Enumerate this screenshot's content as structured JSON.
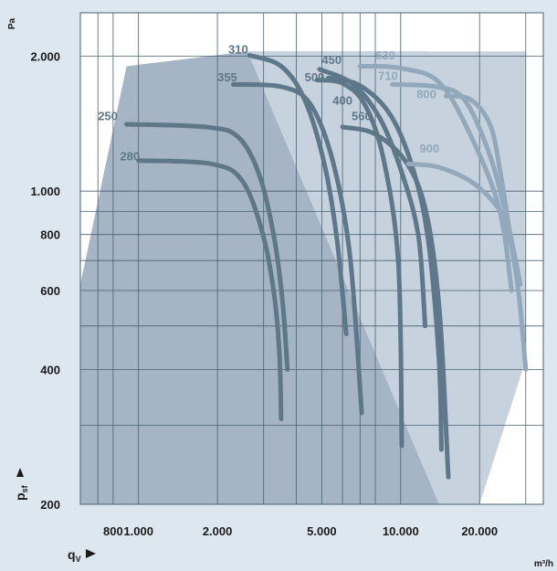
{
  "chart_data": {
    "type": "line",
    "x_scale": "log",
    "y_scale": "log",
    "ylabel": "Pa",
    "xlabel_unit": "m³/h",
    "xlabel_symbol": "q",
    "xlabel_sub": "V",
    "ylabel_symbol": "p",
    "ylabel_sub": "sf",
    "xlim": [
      600,
      35000
    ],
    "ylim": [
      200,
      2500
    ],
    "y_ticks": [
      {
        "value": 2000,
        "label": "2.000"
      },
      {
        "value": 1000,
        "label": "1.000"
      },
      {
        "value": 800,
        "label": "800"
      },
      {
        "value": 600,
        "label": "600"
      },
      {
        "value": 400,
        "label": "400"
      },
      {
        "value": 200,
        "label": "200"
      }
    ],
    "x_ticks": [
      {
        "value": 800,
        "label": "800"
      },
      {
        "value": 1000,
        "label": "1.000"
      },
      {
        "value": 2000,
        "label": "2.000"
      },
      {
        "value": 5000,
        "label": "5.000"
      },
      {
        "value": 10000,
        "label": "10.000"
      },
      {
        "value": 20000,
        "label": "20.000"
      }
    ],
    "x_grid": [
      700,
      800,
      1000,
      2000,
      3000,
      4000,
      5000,
      6000,
      7000,
      8000,
      10000,
      20000,
      30000
    ],
    "y_grid": [
      200,
      300,
      400,
      500,
      600,
      700,
      800,
      900,
      1000,
      2000
    ],
    "regions": [
      {
        "name": "dark",
        "color": "#a5b5c5",
        "points": [
          [
            600,
            620
          ],
          [
            900,
            1900
          ],
          [
            2600,
            2050
          ],
          [
            12500,
            2050
          ],
          [
            14000,
            200
          ],
          [
            600,
            200
          ]
        ]
      },
      {
        "name": "light",
        "color": "#c6d2dd",
        "points": [
          [
            2600,
            2050
          ],
          [
            30000,
            2050
          ],
          [
            30000,
            420
          ],
          [
            20000,
            200
          ],
          [
            14000,
            200
          ]
        ]
      }
    ],
    "series": [
      {
        "name": "250",
        "color": "#5e7789",
        "label_at": [
          700,
          1440
        ],
        "values": [
          [
            900,
            1410
          ],
          [
            1800,
            1390
          ],
          [
            2400,
            1320
          ],
          [
            2900,
            1080
          ],
          [
            3300,
            780
          ],
          [
            3550,
            560
          ],
          [
            3700,
            400
          ]
        ]
      },
      {
        "name": "280",
        "color": "#5e7789",
        "label_at": [
          850,
          1170
        ],
        "values": [
          [
            1000,
            1170
          ],
          [
            1900,
            1150
          ],
          [
            2500,
            1050
          ],
          [
            3000,
            790
          ],
          [
            3300,
            580
          ],
          [
            3450,
            430
          ],
          [
            3500,
            310
          ]
        ]
      },
      {
        "name": "310",
        "color": "#5e7789",
        "label_at": [
          2200,
          2030
        ],
        "values": [
          [
            2650,
            2010
          ],
          [
            3500,
            1900
          ],
          [
            4300,
            1600
          ],
          [
            5100,
            1160
          ],
          [
            5700,
            790
          ],
          [
            6200,
            480
          ]
        ]
      },
      {
        "name": "355",
        "color": "#5e7789",
        "label_at": [
          2000,
          1760
        ],
        "values": [
          [
            2300,
            1730
          ],
          [
            3500,
            1710
          ],
          [
            4500,
            1570
          ],
          [
            5500,
            1170
          ],
          [
            6400,
            720
          ],
          [
            7100,
            320
          ]
        ]
      },
      {
        "name": "400",
        "color": "#5e7789",
        "label_at": [
          5500,
          1560
        ],
        "values": [
          [
            4800,
            1770
          ],
          [
            6000,
            1740
          ],
          [
            7300,
            1560
          ],
          [
            8600,
            1180
          ],
          [
            9800,
            690
          ],
          [
            10100,
            270
          ]
        ]
      },
      {
        "name": "450",
        "color": "#5e7789",
        "label_at": [
          5000,
          1920
        ],
        "values": [
          [
            4900,
            1870
          ],
          [
            6600,
            1730
          ],
          [
            8400,
            1440
          ],
          [
            10200,
            1080
          ],
          [
            11700,
            790
          ],
          [
            12400,
            500
          ]
        ]
      },
      {
        "name": "500",
        "color": "#5e7789",
        "label_at": [
          4300,
          1760
        ],
        "values": [
          [
            5300,
            1790
          ],
          [
            7000,
            1720
          ],
          [
            9200,
            1470
          ],
          [
            11300,
            1090
          ],
          [
            12800,
            760
          ],
          [
            14000,
            420
          ],
          [
            14300,
            265
          ]
        ]
      },
      {
        "name": "560",
        "color": "#5e7789",
        "label_at": [
          6500,
          1440
        ],
        "values": [
          [
            6000,
            1390
          ],
          [
            8000,
            1340
          ],
          [
            10600,
            1150
          ],
          [
            12600,
            880
          ],
          [
            14100,
            530
          ],
          [
            15200,
            230
          ]
        ]
      },
      {
        "name": "630",
        "color": "#93a8ba",
        "label_at": [
          8000,
          1970
        ],
        "values": [
          [
            7000,
            1900
          ],
          [
            10000,
            1880
          ],
          [
            14000,
            1750
          ],
          [
            18500,
            1330
          ],
          [
            23700,
            920
          ],
          [
            26500,
            600
          ]
        ]
      },
      {
        "name": "710",
        "color": "#93a8ba",
        "label_at": [
          8200,
          1770
        ],
        "values": [
          [
            9300,
            1730
          ],
          [
            13700,
            1710
          ],
          [
            17500,
            1600
          ],
          [
            21800,
            1210
          ],
          [
            25500,
            860
          ],
          [
            28600,
            620
          ]
        ]
      },
      {
        "name": "800",
        "color": "#93a8ba",
        "label_at": [
          11500,
          1610
        ],
        "values": [
          [
            14900,
            1630
          ],
          [
            18500,
            1600
          ],
          [
            22000,
            1400
          ],
          [
            24000,
            1100
          ],
          [
            25500,
            880
          ],
          [
            26500,
            750
          ]
        ]
      },
      {
        "name": "900",
        "color": "#93a8ba",
        "label_at": [
          11800,
          1220
        ],
        "values": [
          [
            10700,
            1150
          ],
          [
            14000,
            1130
          ],
          [
            19000,
            1040
          ],
          [
            24000,
            900
          ],
          [
            26300,
            760
          ],
          [
            28300,
            580
          ],
          [
            30000,
            400
          ]
        ]
      }
    ]
  }
}
